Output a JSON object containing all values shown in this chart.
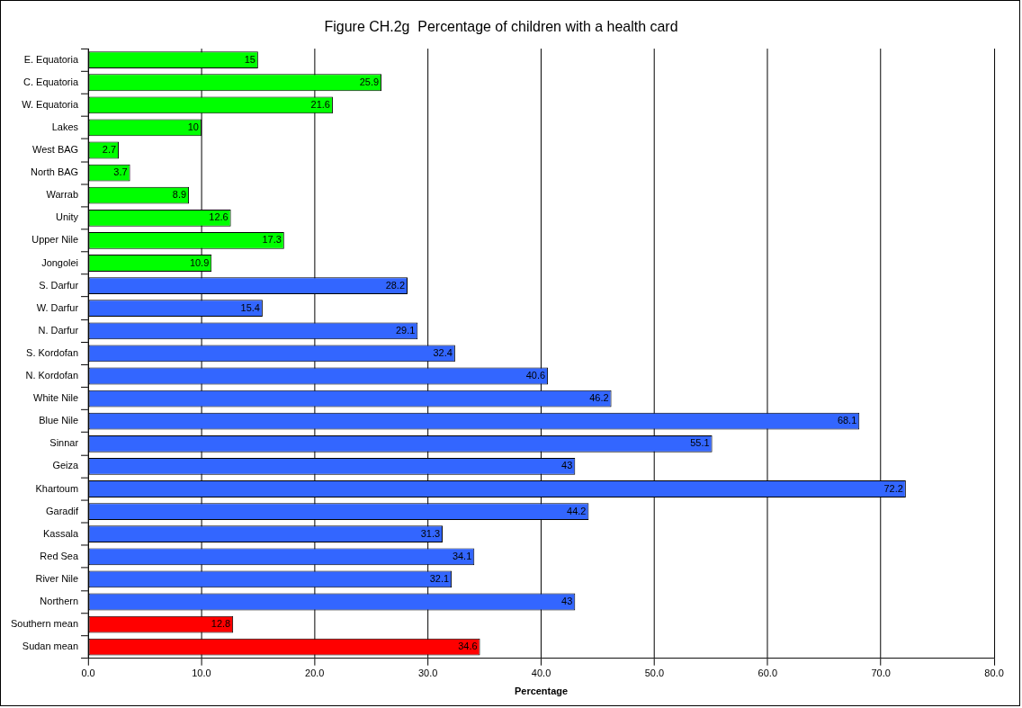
{
  "chart_data": {
    "type": "bar",
    "orientation": "horizontal",
    "title": "Figure CH.2g  Percentage of children with a health card",
    "xlabel": "Percentage",
    "categories": [
      "E. Equatoria",
      "C. Equatoria",
      "W. Equatoria",
      "Lakes",
      "West BAG",
      "North BAG",
      "Warrab",
      "Unity",
      "Upper Nile",
      "Jongolei",
      "S. Darfur",
      "W. Darfur",
      "N. Darfur",
      "S. Kordofan",
      "N. Kordofan",
      "White Nile",
      "Blue Nile",
      "Sinnar",
      "Geiza",
      "Khartoum",
      "Garadif",
      "Kassala",
      "Red Sea",
      "River Nile",
      "Northern",
      "Southern mean",
      "Sudan mean"
    ],
    "values": [
      15,
      25.9,
      21.6,
      10,
      2.7,
      3.7,
      8.9,
      12.6,
      17.3,
      10.9,
      28.2,
      15.4,
      29.1,
      32.4,
      40.6,
      46.2,
      68.1,
      55.1,
      43,
      72.2,
      44.2,
      31.3,
      34.1,
      32.1,
      43,
      12.8,
      34.6
    ],
    "colors": [
      "#00ff00",
      "#00ff00",
      "#00ff00",
      "#00ff00",
      "#00ff00",
      "#00ff00",
      "#00ff00",
      "#00ff00",
      "#00ff00",
      "#00ff00",
      "#3366ff",
      "#3366ff",
      "#3366ff",
      "#3366ff",
      "#3366ff",
      "#3366ff",
      "#3366ff",
      "#3366ff",
      "#3366ff",
      "#3366ff",
      "#3366ff",
      "#3366ff",
      "#3366ff",
      "#3366ff",
      "#3366ff",
      "#ff0000",
      "#ff0000"
    ],
    "xlim": [
      0,
      80
    ],
    "xticks": [
      {
        "value": 0,
        "label": "0.0"
      },
      {
        "value": 10,
        "label": "10.0"
      },
      {
        "value": 20,
        "label": "20.0"
      },
      {
        "value": 30,
        "label": "30.0"
      },
      {
        "value": 40,
        "label": "40.0"
      },
      {
        "value": 50,
        "label": "50.0"
      },
      {
        "value": 60,
        "label": "60.0"
      },
      {
        "value": 70,
        "label": "70.0"
      },
      {
        "value": 80,
        "label": "80.0"
      }
    ],
    "grid": "x",
    "legend": false,
    "data_labels": true
  }
}
